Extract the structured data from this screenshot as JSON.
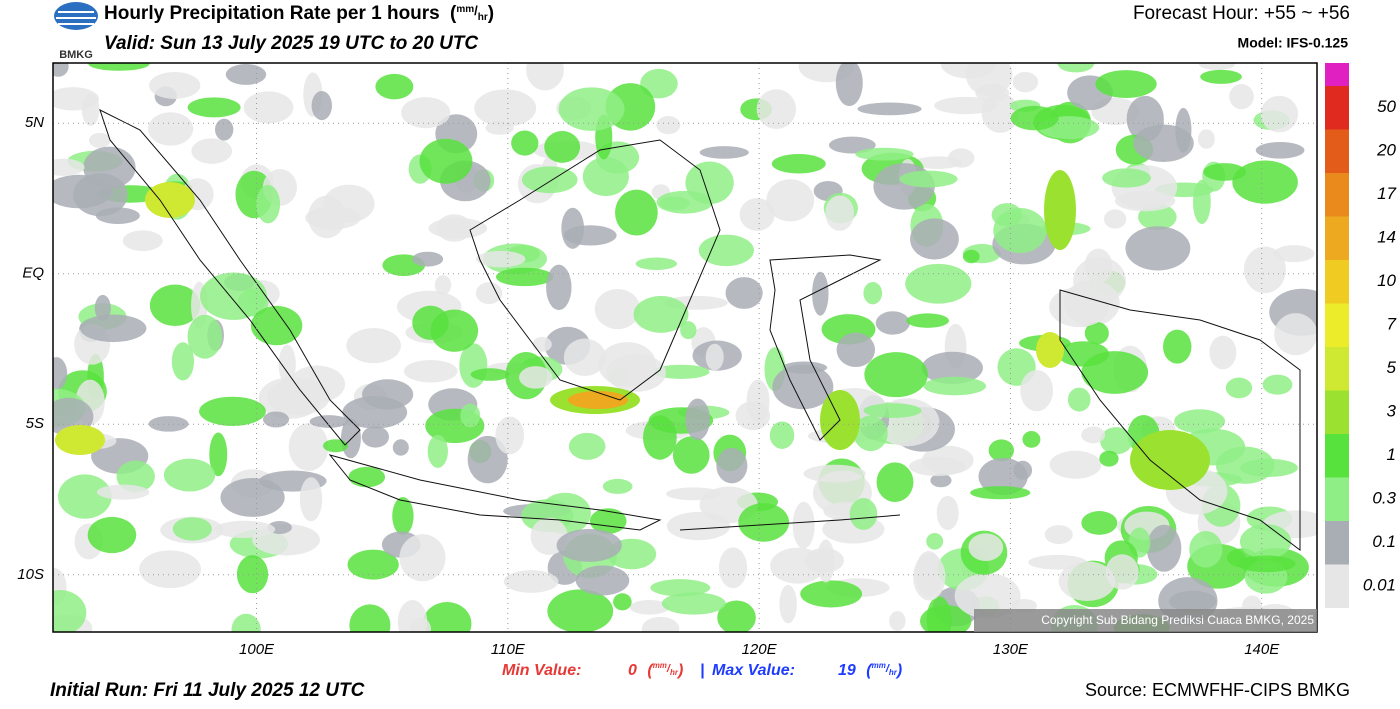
{
  "header": {
    "title": "Hourly Precipitation Rate per 1 hours",
    "unit": [
      "(",
      "mm",
      "/",
      "hr",
      ")"
    ],
    "valid": "Valid: Sun 13 July 2025 19 UTC to 20 UTC",
    "forecast_hour": "Forecast Hour: +55 ~ +56",
    "model": "Model: IFS-0.125",
    "logo": "BMKG"
  },
  "map": {
    "lon_range": [
      91.9,
      142.2
    ],
    "lat_range": [
      7,
      -11.9
    ],
    "lon_ticks": [
      {
        "value": 100,
        "label": "100E"
      },
      {
        "value": 110,
        "label": "110E"
      },
      {
        "value": 120,
        "label": "120E"
      },
      {
        "value": 130,
        "label": "130E"
      },
      {
        "value": 140,
        "label": "140E"
      }
    ],
    "lat_ticks": [
      {
        "value": 5,
        "label": "5N"
      },
      {
        "value": 0,
        "label": "EQ"
      },
      {
        "value": -5,
        "label": "5S"
      },
      {
        "value": -10,
        "label": "10S"
      }
    ],
    "copyright": "Copyright Sub Bidang Prediksi Cuaca BMKG, 2025"
  },
  "colorbar": {
    "levels": [
      0.01,
      0.1,
      0.3,
      1,
      3,
      5,
      7,
      10,
      14,
      17,
      20,
      50
    ],
    "colors": [
      "#e6e6e6",
      "#a9aeb5",
      "#8fef86",
      "#58e23e",
      "#9ae22f",
      "#cfe831",
      "#ecec2a",
      "#f0cb22",
      "#eda91f",
      "#ea8a1c",
      "#e45c1a",
      "#e02a1f"
    ],
    "top_color": "#e020c0"
  },
  "footer": {
    "min_label": "Min Value:",
    "min_value": 0,
    "separator": "|",
    "max_label": "Max Value:",
    "max_value": 19,
    "initial_run": "Initial Run: Fri 11 July 2025 12 UTC",
    "source": "Source: ECMWFHF-CIPS BMKG"
  }
}
